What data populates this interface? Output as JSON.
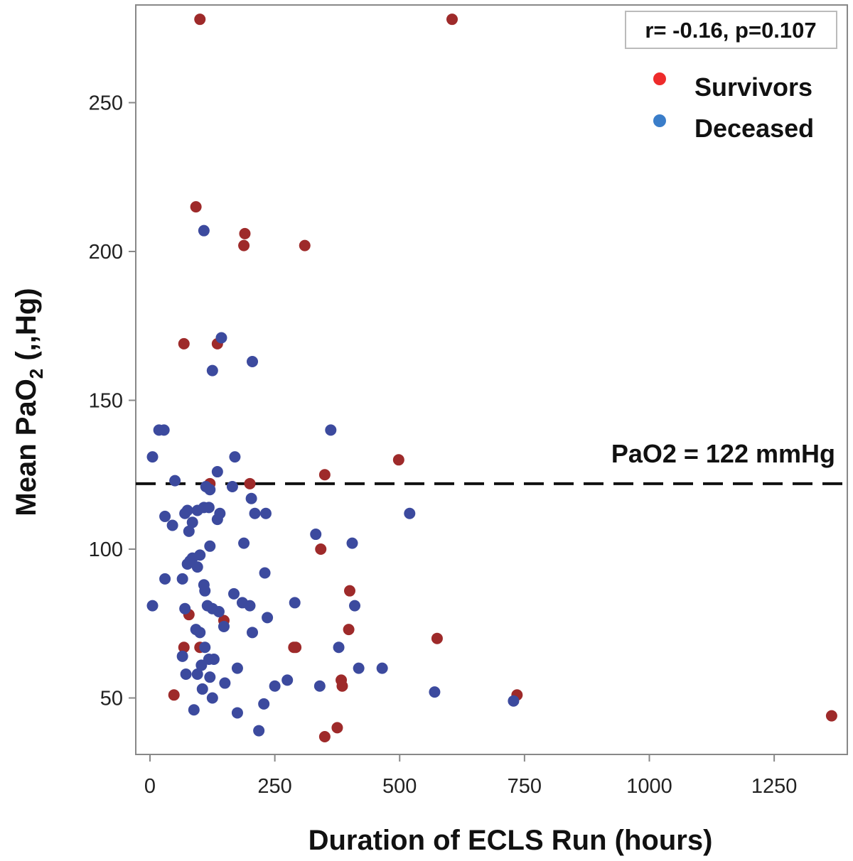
{
  "chart_data": {
    "type": "scatter",
    "xlabel": "Duration of ECLS Run (hours)",
    "ylabel_main": "Mean PaO",
    "ylabel_sub": "2",
    "ylabel_tail": " (,,Hg)",
    "xlim": [
      -30,
      1400
    ],
    "ylim": [
      30,
      280
    ],
    "xticks": [
      0,
      250,
      500,
      750,
      1000,
      1250
    ],
    "yticks": [
      50,
      100,
      150,
      200,
      250
    ],
    "stat_annotation": "r= -0.16, p=0.107",
    "reference_line": {
      "y": 122,
      "label": "PaO2 = 122 mmHg"
    },
    "legend": [
      {
        "name": "Survivors",
        "color": "#ee2b2b"
      },
      {
        "name": "Deceased",
        "color": "#3a7dc9"
      }
    ],
    "series": [
      {
        "name": "Survivors",
        "color": "#9e2a2a",
        "points": [
          [
            100,
            278
          ],
          [
            605,
            278
          ],
          [
            92,
            215
          ],
          [
            190,
            206
          ],
          [
            188,
            202
          ],
          [
            310,
            202
          ],
          [
            68,
            169
          ],
          [
            135,
            169
          ],
          [
            498,
            130
          ],
          [
            350,
            125
          ],
          [
            120,
            122
          ],
          [
            200,
            122
          ],
          [
            342,
            100
          ],
          [
            400,
            86
          ],
          [
            148,
            76
          ],
          [
            78,
            78
          ],
          [
            398,
            73
          ],
          [
            575,
            70
          ],
          [
            68,
            67
          ],
          [
            100,
            67
          ],
          [
            288,
            67
          ],
          [
            292,
            67
          ],
          [
            383,
            56
          ],
          [
            385,
            54
          ],
          [
            48,
            51
          ],
          [
            735,
            51
          ],
          [
            375,
            40
          ],
          [
            350,
            37
          ],
          [
            1365,
            44
          ]
        ]
      },
      {
        "name": "Deceased",
        "color": "#3c4a9e",
        "points": [
          [
            18,
            140
          ],
          [
            28,
            140
          ],
          [
            362,
            140
          ],
          [
            5,
            131
          ],
          [
            170,
            131
          ],
          [
            50,
            123
          ],
          [
            135,
            126
          ],
          [
            165,
            121
          ],
          [
            112,
            121
          ],
          [
            120,
            120
          ],
          [
            203,
            117
          ],
          [
            108,
            114
          ],
          [
            118,
            114
          ],
          [
            95,
            113
          ],
          [
            75,
            113
          ],
          [
            70,
            112
          ],
          [
            140,
            112
          ],
          [
            210,
            112
          ],
          [
            232,
            112
          ],
          [
            520,
            112
          ],
          [
            30,
            111
          ],
          [
            135,
            110
          ],
          [
            85,
            109
          ],
          [
            45,
            108
          ],
          [
            78,
            106
          ],
          [
            332,
            105
          ],
          [
            188,
            102
          ],
          [
            120,
            101
          ],
          [
            405,
            102
          ],
          [
            100,
            98
          ],
          [
            85,
            97
          ],
          [
            80,
            96
          ],
          [
            75,
            95
          ],
          [
            95,
            94
          ],
          [
            230,
            92
          ],
          [
            30,
            90
          ],
          [
            65,
            90
          ],
          [
            108,
            88
          ],
          [
            110,
            86
          ],
          [
            168,
            85
          ],
          [
            5,
            81
          ],
          [
            115,
            81
          ],
          [
            125,
            80
          ],
          [
            185,
            82
          ],
          [
            200,
            81
          ],
          [
            290,
            82
          ],
          [
            410,
            81
          ],
          [
            70,
            80
          ],
          [
            138,
            79
          ],
          [
            148,
            74
          ],
          [
            235,
            77
          ],
          [
            92,
            73
          ],
          [
            205,
            72
          ],
          [
            100,
            72
          ],
          [
            110,
            67
          ],
          [
            118,
            63
          ],
          [
            128,
            63
          ],
          [
            378,
            67
          ],
          [
            65,
            64
          ],
          [
            103,
            61
          ],
          [
            175,
            60
          ],
          [
            418,
            60
          ],
          [
            465,
            60
          ],
          [
            95,
            58
          ],
          [
            72,
            58
          ],
          [
            120,
            57
          ],
          [
            150,
            55
          ],
          [
            105,
            53
          ],
          [
            250,
            54
          ],
          [
            275,
            56
          ],
          [
            340,
            54
          ],
          [
            125,
            50
          ],
          [
            570,
            52
          ],
          [
            728,
            49
          ],
          [
            88,
            46
          ],
          [
            175,
            45
          ],
          [
            228,
            48
          ],
          [
            218,
            39
          ],
          [
            108,
            207
          ],
          [
            143,
            171
          ],
          [
            205,
            163
          ],
          [
            125,
            160
          ]
        ]
      }
    ]
  }
}
